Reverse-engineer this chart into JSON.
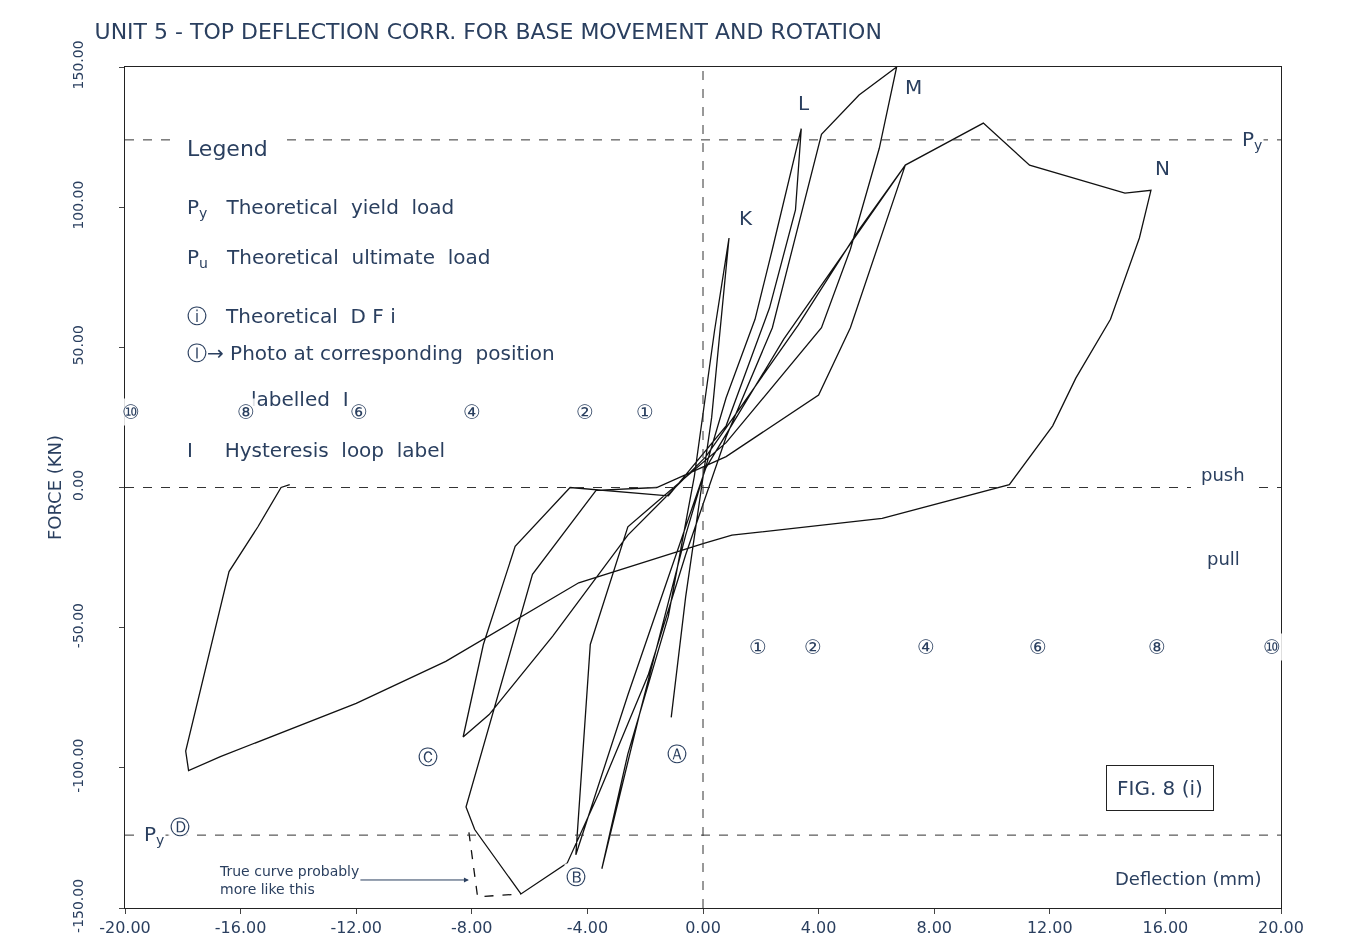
{
  "chart_data": {
    "type": "line",
    "title": "UNIT 5 - TOP DEFLECTION CORR. FOR BASE MOVEMENT AND ROTATION",
    "xlabel": "Deflection (mm)",
    "ylabel": "FORCE (KN)",
    "xlim": [
      -20,
      20
    ],
    "ylim": [
      -150,
      150
    ],
    "xticks": [
      {
        "value": -20,
        "label": "-20.00"
      },
      {
        "value": -16,
        "label": "-16.00"
      },
      {
        "value": -12,
        "label": "-12.00"
      },
      {
        "value": -8,
        "label": "-8.00"
      },
      {
        "value": -4,
        "label": "-4.00"
      },
      {
        "value": 0,
        "label": "0.00"
      },
      {
        "value": 4,
        "label": "4.00"
      },
      {
        "value": 8,
        "label": "8.00"
      },
      {
        "value": 12,
        "label": "12.00"
      },
      {
        "value": 16,
        "label": "16.00"
      },
      {
        "value": 20,
        "label": "20.00"
      }
    ],
    "yticks": [
      {
        "value": -150,
        "label": "-150.00"
      },
      {
        "value": -100,
        "label": "-100.00"
      },
      {
        "value": -50,
        "label": "-50.00"
      },
      {
        "value": 0,
        "label": "0.00"
      },
      {
        "value": 50,
        "label": "50.00"
      },
      {
        "value": 100,
        "label": "100.00"
      },
      {
        "value": 150,
        "label": "150.00"
      }
    ],
    "marker": "none",
    "series": [
      {
        "color": "#111111",
        "line_style": "solid",
        "x": [
          -1.1,
          -0.6,
          0.3,
          0.9,
          0.4,
          -0.3,
          -1.2,
          -2.6,
          -3.5,
          -2.2,
          -0.6,
          0.8,
          1.8,
          2.4,
          3.4,
          3.2,
          2.3,
          0.8,
          -1.2,
          -4.6,
          -6.5,
          -7.6,
          -8.3,
          -7.4,
          -5.2,
          -2.6,
          0.1,
          3.3,
          5.4,
          7.0,
          5.1,
          4.0,
          0.8,
          -1.6,
          -3.7,
          -5.9,
          -8.2,
          -7.9,
          -6.3,
          -4.7,
          -3.6,
          -1.9,
          -0.6,
          0.8,
          2.4,
          4.1,
          5.4,
          6.7,
          6.1,
          5.1,
          4.1,
          0.8,
          -2.6,
          -3.9,
          -4.4,
          -2.6,
          0.1,
          2.8,
          7.0,
          9.7,
          11.3,
          14.6,
          15.5,
          15.1,
          14.1,
          12.9,
          12.1,
          10.6,
          6.2,
          1.0,
          0.0,
          -4.3,
          -8.9,
          -12.0,
          -16.7,
          -17.8,
          -17.9,
          -16.4,
          -15.4,
          -14.6,
          -14.3
        ],
        "values": [
          -82,
          -39,
          25,
          89,
          56,
          4,
          -46,
          -95,
          -136,
          -81,
          -17,
          32,
          60,
          85,
          128,
          99,
          64,
          22,
          -3,
          0,
          -21,
          -56,
          -89,
          -81,
          -53,
          -17,
          11,
          58,
          92,
          115,
          57,
          33,
          11,
          0,
          -1,
          -31,
          -114,
          -122,
          -145,
          -134,
          -109,
          -67,
          -24,
          18,
          57,
          126,
          140,
          150,
          121,
          85,
          57,
          16,
          -14,
          -56,
          -131,
          -74,
          7,
          53,
          115,
          130,
          115,
          105,
          106,
          89,
          60,
          39,
          22,
          1,
          -11,
          -17,
          -20,
          -34,
          -62,
          -77,
          -96,
          -101,
          -94,
          -30,
          -14,
          0,
          1
        ]
      },
      {
        "color": "#111111",
        "line_style": "dashed",
        "x": [
          -8.1,
          -7.8,
          -6.3
        ],
        "values": [
          -123,
          -146,
          -145
        ]
      }
    ],
    "ref_lines": [
      {
        "axis": "y",
        "value": 124,
        "label": "P$_{y}$",
        "line_style": "dashed",
        "color": "#333333"
      },
      {
        "axis": "y",
        "value": -124,
        "label": "P$_{y}$",
        "line_style": "dashed",
        "color": "#333333"
      },
      {
        "axis": "x",
        "value": 0,
        "line_style": "dashed",
        "color": "#333333"
      },
      {
        "axis": "y",
        "value": 0,
        "line_style": "dashed",
        "color": "#333333"
      }
    ],
    "annotations": [
      "Legend",
      "P$_{y}$   Theoretical  yield  load",
      "P$_{u}$   Theoretical  ultimate  load",
      "ⓘ   Theoretical  D F i",
      "Ⓘ→ Photo at corresponding  position",
      "labelled  I",
      "I     Hysteresis  loop  label",
      "FIG. 8 (i)",
      "push",
      "pull",
      "True curve probably more like this",
      "K",
      "L",
      "M",
      "N",
      "Ⓐ",
      "Ⓑ",
      "Ⓒ",
      "Ⓓ",
      "⑩",
      "⑧",
      "⑥",
      "④",
      "②",
      "①",
      "①",
      "②",
      "④",
      "⑥",
      "⑧",
      "⑩"
    ]
  }
}
